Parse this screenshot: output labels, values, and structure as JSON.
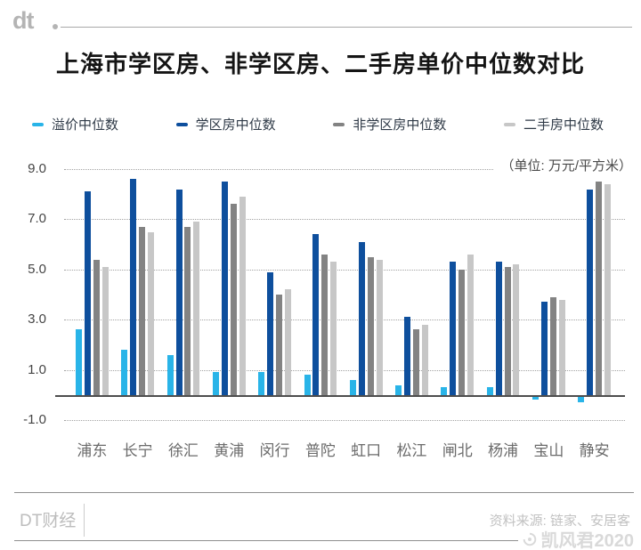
{
  "header": {
    "logo_text": "dt",
    "title": "上海市学区房、非学区房、二手房单价中位数对比"
  },
  "chart_data": {
    "type": "bar",
    "title": "上海市学区房、非学区房、二手房单价中位数对比",
    "unit_label": "（单位: 万元/平方米）",
    "categories": [
      "浦东",
      "长宁",
      "徐汇",
      "黄浦",
      "闵行",
      "普陀",
      "虹口",
      "松江",
      "闸北",
      "杨浦",
      "宝山",
      "静安"
    ],
    "series": [
      {
        "name": "溢价中位数",
        "color": "#29b4e8",
        "values": [
          2.6,
          1.8,
          1.6,
          0.9,
          0.9,
          0.8,
          0.6,
          0.4,
          0.3,
          0.3,
          -0.2,
          -0.3
        ]
      },
      {
        "name": "学区房中位数",
        "color": "#0e4f9d",
        "values": [
          8.1,
          8.6,
          8.2,
          8.5,
          4.9,
          6.4,
          6.1,
          3.1,
          5.3,
          5.3,
          3.7,
          8.2
        ]
      },
      {
        "name": "非学区房中位数",
        "color": "#838383",
        "values": [
          5.4,
          6.7,
          6.7,
          7.6,
          4.0,
          5.6,
          5.5,
          2.6,
          5.0,
          5.1,
          3.9,
          8.5
        ]
      },
      {
        "name": "二手房中位数",
        "color": "#c7c7c7",
        "values": [
          5.1,
          6.5,
          6.9,
          7.9,
          4.2,
          5.3,
          5.4,
          2.8,
          5.6,
          5.2,
          3.8,
          8.4
        ]
      }
    ],
    "ylim": [
      -1.0,
      9.0
    ],
    "yticks": [
      9.0,
      7.0,
      5.0,
      3.0,
      1.0,
      -1.0
    ],
    "grid": "horizontal-dotted",
    "legend_position": "top"
  },
  "footer": {
    "brand": "DT财经",
    "source": "资料来源: 链家、安居客",
    "watermark": "凯风君2020"
  }
}
